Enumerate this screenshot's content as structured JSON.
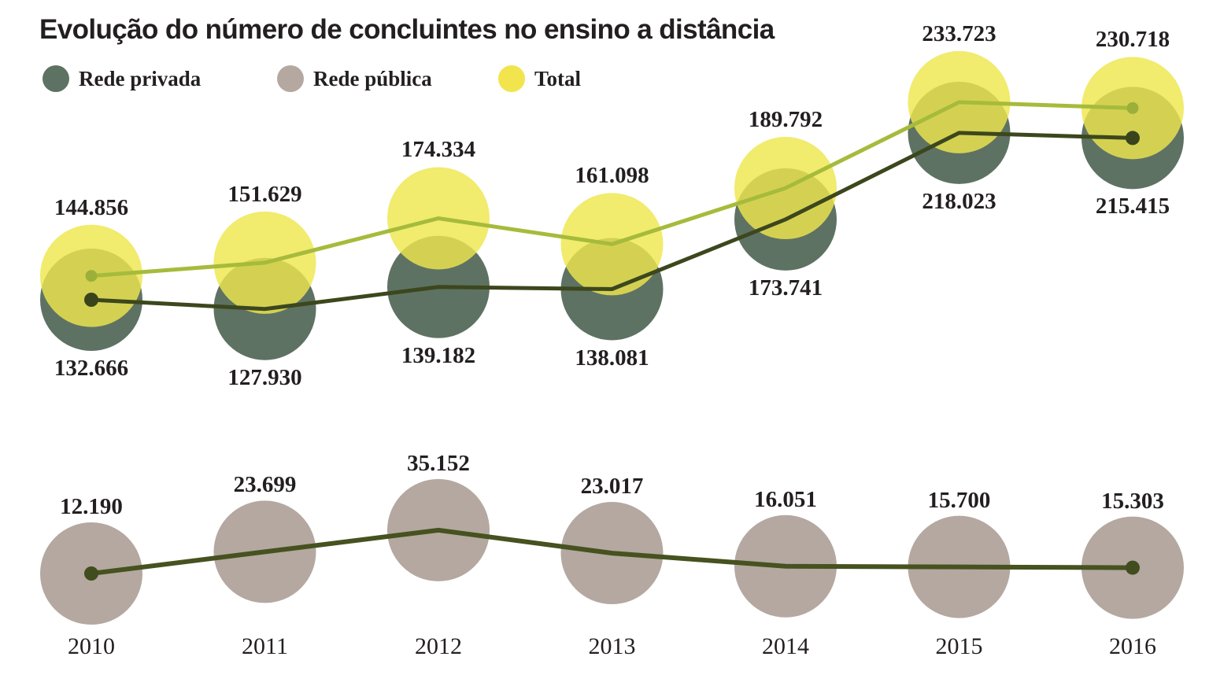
{
  "title": "Evolução do número de concluintes no ensino a distância",
  "colors": {
    "background": "#ffffff",
    "text": "#231f20",
    "total_bubble": "#eee64e",
    "privada_bubble": "#5e7263",
    "publica_bubble": "#b4a8a1",
    "total_line": "#a6bb3b",
    "privada_line": "#3c471d",
    "publica_line": "#46521f"
  },
  "legend": [
    {
      "label": "Rede privada",
      "color": "#5e7263"
    },
    {
      "label": "Rede pública",
      "color": "#b4a8a1"
    },
    {
      "label": "Total",
      "color": "#f2e44c"
    }
  ],
  "chart_data": {
    "type": "line",
    "style": "bubble-markers",
    "title": "Evolução do número de concluintes no ensino a distância",
    "categories": [
      "2010",
      "2011",
      "2012",
      "2013",
      "2014",
      "2015",
      "2016"
    ],
    "series": [
      {
        "name": "Total",
        "panel": "top",
        "values": [
          144856,
          151629,
          174334,
          161098,
          189792,
          233723,
          230718
        ],
        "labels": [
          "144.856",
          "151.629",
          "174.334",
          "161.098",
          "189.792",
          "233.723",
          "230.718"
        ],
        "bubble_color": "#eee64e",
        "line_color": "#a6bb3b",
        "dot_color": "#9cb039",
        "label_position": "above"
      },
      {
        "name": "Rede privada",
        "panel": "top",
        "values": [
          132666,
          127930,
          139182,
          138081,
          173741,
          218023,
          215415
        ],
        "labels": [
          "132.666",
          "127.930",
          "139.182",
          "138.081",
          "173.741",
          "218.023",
          "215.415"
        ],
        "bubble_color": "#5e7263",
        "line_color": "#3c471d",
        "dot_color": "#39441c",
        "label_position": "below"
      },
      {
        "name": "Rede pública",
        "panel": "bottom",
        "values": [
          12190,
          23699,
          35152,
          23017,
          16051,
          15700,
          15303
        ],
        "labels": [
          "12.190",
          "23.699",
          "35.152",
          "23.017",
          "16.051",
          "15.700",
          "15.303"
        ],
        "bubble_color": "#b4a8a1",
        "line_color": "#46521f",
        "dot_color": "#414d1e",
        "label_position": "above"
      }
    ],
    "value_labels": true,
    "number_format": "thousands-dot",
    "grid": false,
    "axes_shown": false,
    "legend_position": "top-left",
    "xlabel": "",
    "ylabel": ""
  }
}
